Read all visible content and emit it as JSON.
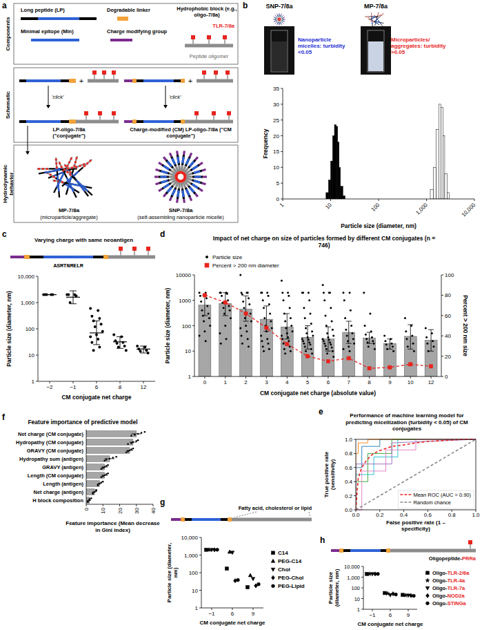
{
  "panel_a": {
    "label": "a",
    "sections": {
      "components": "Components",
      "schematic": "Schematic",
      "behavior": "Hydrodynamic behavior"
    },
    "components": {
      "long_peptide": "Long peptide (LP)",
      "linker": "Degradable linker",
      "hydrophobic_block": "Hydrophobic block (e.g., oligo-7/8a)",
      "tlr": "TLR-7/8a",
      "min_epitope": "Minimal epitope (Min)",
      "charge_group": "Charge modifying group",
      "oligomer": "Peptide oligomer"
    },
    "schematic": {
      "plus": "+",
      "click": "'click'",
      "conjugate": "LP-oligo-7/8a (\"conjugate\")",
      "cm_conjugate": "Charge-modified (CM) LP-oligo-7/8a (\"CM conjugate\")"
    },
    "behavior": {
      "mp": "MP-7/8a",
      "mp_note": "(microparticle/aggregate)",
      "snp": "SNP-7/8a",
      "snp_note": "(self-assembling nanoparticle micelle)"
    }
  },
  "panel_c_schematic": {
    "title": "Varying charge with same neoantigen",
    "sequence": "ASMTNMELM"
  },
  "panel_g_schematic": {
    "annotation": "Fatty acid, cholesterol or lipid"
  },
  "panel_h_schematic": {
    "annotation": "Oligopeptide-PRRa"
  },
  "chart_data": [
    {
      "label": "b",
      "type": "histogram",
      "annotations": [
        {
          "text": "Nanoparticle micelles: turbidity <0.05",
          "color": "#1f2fd6"
        },
        {
          "text": "Microparticles/ aggregates: turbidity >0.05",
          "color": "#e8251f"
        }
      ],
      "x_label": "Particle size (diameter, nm)",
      "y_label": "Frequency",
      "log": "x",
      "xlim": [
        1,
        10000
      ],
      "xticks": [
        1,
        10,
        100,
        {
          "value": 1000,
          "label": "1,000"
        },
        {
          "value": 10000,
          "label": "10,000"
        }
      ],
      "ylim": [
        0,
        35
      ],
      "yticks": [
        0,
        5,
        10,
        15,
        20,
        25,
        30,
        35
      ],
      "series": [
        {
          "name": "SNP-7/8a",
          "color": "#000000",
          "bins": [
            8,
            9,
            10,
            11,
            12,
            13,
            14,
            15,
            16,
            18,
            20
          ],
          "values": [
            2,
            6,
            12,
            20,
            23.5,
            23,
            18,
            10,
            4,
            1
          ]
        },
        {
          "name": "MP-7/8a",
          "color": "#ffffff",
          "bins": [
            1200,
            1400,
            1600,
            1800,
            2000,
            2200,
            2400,
            2700,
            3000
          ],
          "values": [
            3,
            10,
            22,
            30,
            29,
            20,
            8,
            2
          ]
        }
      ]
    },
    {
      "label": "c",
      "type": "scatter",
      "x_label": "CM conjugate net charge",
      "y_label": "Particle size (diameter, nm)",
      "log": "y",
      "ylim": [
        1,
        10000
      ],
      "yticks": [
        1,
        10,
        100,
        {
          "value": 1000,
          "label": "1,000"
        },
        {
          "value": 10000,
          "label": "10,000"
        }
      ],
      "categories": [
        "−2",
        "−1",
        "6",
        "8",
        "12"
      ],
      "color": "#000000",
      "values": [
        [
          2000,
          2000,
          2000,
          2000,
          2000
        ],
        [
          2000,
          2000,
          2000,
          1800,
          1000
        ],
        [
          600,
          500,
          300,
          250,
          200,
          150,
          120,
          80,
          60,
          50,
          40,
          30,
          20,
          15
        ],
        [
          60,
          50,
          35,
          30,
          28,
          22,
          20,
          15
        ],
        [
          22,
          20,
          17,
          15,
          14,
          12
        ]
      ],
      "mean": [
        2000,
        1600,
        70,
        32,
        17
      ],
      "ci_low": [
        2000,
        900,
        25,
        18,
        12
      ],
      "ci_high": [
        2000,
        2800,
        200,
        50,
        22
      ]
    },
    {
      "label": "d",
      "type": "bar",
      "title": "Impact of net charge on size of particles formed by different CM conjugates (n = 746)",
      "x_label": "CM conjugate net charge (absolute value)",
      "y_label": "Particle size (diameter, nm)",
      "y2_label": "Percent > 200 nm size",
      "log": "y",
      "ylim": [
        1,
        10000
      ],
      "yticks": [
        1,
        10,
        100,
        1000,
        10000
      ],
      "y2lim": [
        0,
        100
      ],
      "y2ticks": [
        0,
        20,
        40,
        60,
        80,
        100
      ],
      "legend": "top left",
      "categories": [
        "0",
        "1",
        "2",
        "3",
        "4",
        "5",
        "6",
        "7",
        "8",
        "9",
        "10",
        "12"
      ],
      "series": [
        {
          "name": "Particle size",
          "type": "scatter",
          "color": "#000000",
          "values": [
            [
              2000,
              2000,
              1500,
              1200,
              900,
              600,
              400,
              300,
              250,
              200,
              150,
              100,
              60,
              40,
              25
            ],
            [
              2000,
              2000,
              2000,
              1800,
              1500,
              1000,
              800,
              600,
              500,
              400,
              300,
              200,
              100,
              50,
              30,
              20
            ],
            [
              10000,
              2000,
              2000,
              2000,
              1700,
              1200,
              900,
              700,
              500,
              300,
              200,
              150,
              100,
              80,
              60,
              40,
              30,
              20,
              15
            ],
            [
              2000,
              2000,
              2000,
              1500,
              1000,
              700,
              500,
              300,
              200,
              150,
              100,
              80,
              60,
              40,
              30,
              25,
              20,
              15,
              12,
              10
            ],
            [
              6000,
              2000,
              2000,
              1500,
              1000,
              500,
              300,
              200,
              150,
              100,
              80,
              60,
              50,
              40,
              35,
              30,
              25,
              20,
              15,
              12,
              10,
              8
            ],
            [
              2000,
              2000,
              2000,
              1000,
              500,
              300,
              200,
              120,
              80,
              60,
              50,
              40,
              35,
              30,
              28,
              25,
              22,
              20,
              18,
              15,
              12,
              10,
              8,
              6
            ],
            [
              4000,
              2000,
              2000,
              2000,
              1000,
              500,
              250,
              150,
              100,
              70,
              50,
              40,
              35,
              30,
              28,
              25,
              22,
              20,
              18,
              16,
              14,
              12,
              10,
              8,
              6,
              4
            ],
            [
              2000,
              2000,
              1000,
              400,
              200,
              100,
              70,
              50,
              40,
              30,
              25,
              20,
              15,
              12,
              10
            ],
            [
              2000,
              300,
              100,
              60,
              45,
              35,
              30,
              25,
              22,
              20,
              15,
              12
            ],
            [
              40,
              30,
              25,
              20,
              18,
              15,
              12,
              10
            ],
            [
              200,
              100,
              60,
              40,
              30,
              20,
              15,
              10
            ],
            [
              80,
              50,
              35,
              25,
              20,
              15,
              10
            ]
          ]
        },
        {
          "type": "bar",
          "color": "#a6a6a6",
          "values": [
            650,
            750,
            450,
            180,
            90,
            35,
            30,
            55,
            33,
            20,
            38,
            27
          ],
          "ci_low": [
            250,
            250,
            150,
            60,
            30,
            12,
            10,
            20,
            20,
            12,
            12,
            10
          ],
          "ci_high": [
            1600,
            2000,
            1500,
            600,
            300,
            100,
            90,
            150,
            55,
            30,
            110,
            70
          ]
        },
        {
          "name": "Percent > 200 nm diameter",
          "type": "line",
          "color": "#e8251f",
          "marker": "square",
          "line_style": "dashed",
          "axis": "y2",
          "values": [
            80,
            73,
            62,
            48,
            32,
            20,
            15,
            18,
            8,
            9,
            12,
            10
          ]
        }
      ]
    },
    {
      "label": "e",
      "type": "line",
      "title": "Performance of machine learning model for predicting micellization (turbidity < 0.05) of CM conjugates",
      "x_label": "False positive rate (1 – specificity)",
      "y_label": "True positive rate (sensitivity)",
      "xlim": [
        0,
        1
      ],
      "ylim": [
        0,
        1
      ],
      "xticks": [
        {
          "value": 0,
          "label": "0.0"
        },
        0.2,
        0.4,
        0.6,
        0.8,
        {
          "value": 1,
          "label": "1.0"
        }
      ],
      "yticks": [
        {
          "value": 0,
          "label": "0.0"
        },
        0.2,
        0.4,
        0.6,
        0.8,
        {
          "value": 1,
          "label": "1.0"
        }
      ],
      "legend": "lower right",
      "series": [
        {
          "color": "#1f77b4",
          "x": [
            0,
            0,
            0.05,
            0.05,
            0.2,
            0.2,
            1
          ],
          "values": [
            0,
            0.6,
            0.6,
            0.9,
            0.9,
            1,
            1
          ]
        },
        {
          "color": "#2ca02c",
          "x": [
            0,
            0,
            0.1,
            0.1,
            0.3,
            0.3,
            1
          ],
          "values": [
            0,
            0.4,
            0.4,
            0.8,
            0.8,
            1,
            1
          ]
        },
        {
          "color": "#17becf",
          "x": [
            0,
            0,
            0.15,
            0.15,
            0.35,
            0.35,
            1
          ],
          "values": [
            0,
            0.5,
            0.5,
            0.75,
            0.75,
            1,
            1
          ]
        },
        {
          "color": "#ff7f0e",
          "x": [
            0,
            0,
            0.02,
            0.02,
            0.1,
            0.1,
            1
          ],
          "values": [
            0,
            0.8,
            0.8,
            0.95,
            0.95,
            1,
            1
          ]
        },
        {
          "color": "#e377c2",
          "x": [
            0,
            0.05,
            0.05,
            0.25,
            0.25,
            0.5,
            0.5,
            1
          ],
          "values": [
            0,
            0,
            0.55,
            0.55,
            0.85,
            0.85,
            1,
            1
          ]
        },
        {
          "color": "#9467bd",
          "x": [
            0,
            0,
            0.3,
            0.3,
            1
          ],
          "values": [
            0,
            0.65,
            0.65,
            0.95,
            1
          ]
        },
        {
          "name": "Mean ROC (AUC = 0.90)",
          "color": "#e8251f",
          "line_style": "dashed",
          "x": [
            0,
            0.02,
            0.05,
            0.08,
            0.1,
            0.12,
            0.15,
            0.2,
            0.25,
            0.3,
            0.4,
            0.5,
            0.6,
            0.7,
            0.8,
            0.9,
            1.0
          ],
          "values": [
            0,
            0.45,
            0.6,
            0.68,
            0.72,
            0.76,
            0.8,
            0.84,
            0.87,
            0.9,
            0.92,
            0.95,
            0.97,
            0.98,
            0.99,
            1,
            1
          ]
        },
        {
          "name": "Random chance",
          "color": "#888888",
          "line_style": "dashed",
          "x": [
            0,
            1
          ],
          "values": [
            0,
            1
          ]
        }
      ]
    },
    {
      "label": "f",
      "type": "bar",
      "orientation": "horizontal",
      "title": "Feature importance of predictive model",
      "x_label": "Feature importance (Mean decrease in Gini index)",
      "categories": [
        "Net charge (CM conjugate)",
        "Hydropathy (CM conjugate)",
        "GRAVY (CM conjugate)",
        "Hydropathy sum (antigen)",
        "GRAVY (antigen)",
        "Length (CM conjugate)",
        "Length (antigen)",
        "Net charge (antigen)",
        "H block composition"
      ],
      "values": [
        30,
        28,
        26,
        14,
        11,
        11,
        8,
        5,
        2
      ],
      "error": [
        3,
        2,
        2,
        3,
        2,
        2,
        1,
        1,
        1
      ],
      "points": [
        [
          35,
          33,
          31,
          29,
          27
        ],
        [
          31,
          30,
          28,
          27,
          25
        ],
        [
          28,
          27,
          26,
          25,
          24
        ],
        [
          18,
          16,
          14,
          12,
          11
        ],
        [
          13,
          12,
          11,
          10,
          9
        ],
        [
          13,
          12,
          11,
          10,
          9
        ],
        [
          10,
          9,
          8,
          7,
          7
        ],
        [
          6,
          6,
          5,
          4,
          4
        ],
        [
          3,
          2,
          2,
          1,
          1
        ]
      ],
      "xlim": [
        0,
        40
      ],
      "xticks": [
        0,
        10,
        20,
        30,
        40
      ],
      "color": "#a6a6a6"
    },
    {
      "label": "g",
      "type": "scatter",
      "x_label": "CM conjugate net charge",
      "y_label": "Particle size (diameter, nm)",
      "log": "y",
      "ylim": [
        1,
        10000
      ],
      "yticks": [
        1,
        10,
        100,
        {
          "value": 1000,
          "label": "1,000"
        },
        {
          "value": 10000,
          "label": "10,000"
        }
      ],
      "categories": [
        "−1",
        "6",
        "9"
      ],
      "legend": "right",
      "series": [
        {
          "name": "C14",
          "marker": "square",
          "color": "#000000",
          "values": [
            2000,
            170,
            15
          ]
        },
        {
          "name": "PEG-C14",
          "marker": "triangle-up",
          "color": "#000000",
          "values": [
            2000,
            1500,
            70
          ]
        },
        {
          "name": "Chol",
          "marker": "triangle-down",
          "color": "#000000",
          "values": [
            2000,
            1400,
            45
          ]
        },
        {
          "name": "PEG-Chol",
          "marker": "diamond",
          "color": "#000000",
          "values": [
            2000,
            35,
            18
          ]
        },
        {
          "name": "PEG-Lipid",
          "marker": "circle",
          "color": "#000000",
          "values": [
            2000,
            38,
            22
          ]
        }
      ]
    },
    {
      "label": "h",
      "type": "scatter",
      "x_label": "CM conjugate net charge",
      "y_label": "Particle size (diameter, nm)",
      "log": "y",
      "ylim": [
        1,
        10000
      ],
      "yticks": [
        1,
        10,
        100,
        {
          "value": 1000,
          "label": "1,000"
        },
        {
          "value": 10000,
          "label": "10,000"
        }
      ],
      "categories": [
        "−1",
        "6",
        "9"
      ],
      "legend": "right",
      "series": [
        {
          "name": "Oligo-TLR-2/6a",
          "marker": "square",
          "color": "#000000",
          "values": [
            2000,
            33,
            22
          ]
        },
        {
          "name": "Oligo-TLR-4a",
          "marker": "star",
          "color": "#000000",
          "values": [
            2000,
            30,
            20
          ]
        },
        {
          "name": "Oligo-TLR-7a",
          "marker": "triangle-down",
          "color": "#000000",
          "values": [
            2000,
            22,
            20
          ]
        },
        {
          "name": "Oligo-NOD2a",
          "marker": "diamond",
          "color": "#000000",
          "values": [
            2000,
            28,
            19
          ]
        },
        {
          "name": "Oligo-STINGa",
          "marker": "circle",
          "color": "#000000",
          "values": [
            2000,
            24,
            18
          ]
        }
      ]
    }
  ]
}
